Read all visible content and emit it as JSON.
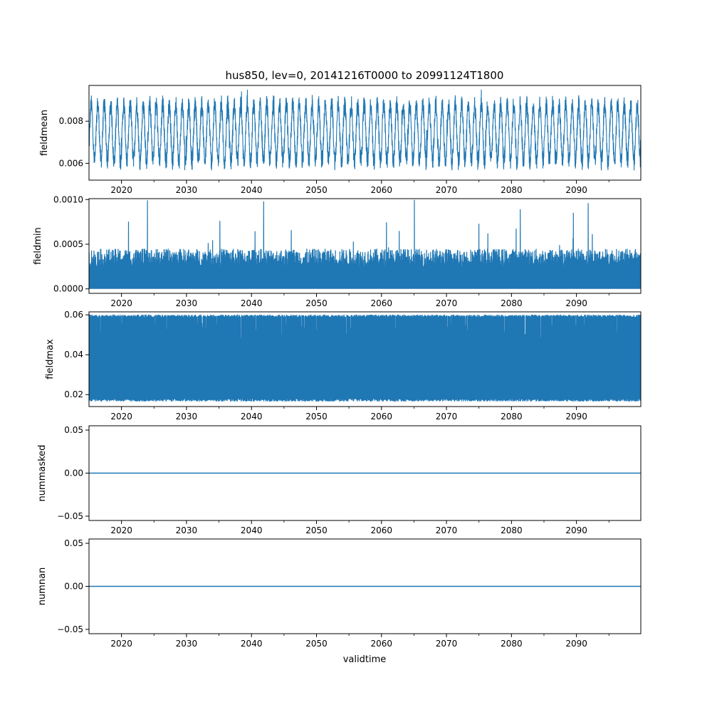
{
  "figure": {
    "title": "hus850, lev=0, 20141216T0000 to 20991124T1800",
    "xlabel": "validtime",
    "line_color": "#1f77b4"
  },
  "chart_data": [
    {
      "type": "line",
      "ylabel": "fieldmean",
      "xlim": [
        2015.0,
        2099.9
      ],
      "ylim": [
        0.0052,
        0.0097
      ],
      "x_ticks": [
        2020,
        2030,
        2040,
        2050,
        2060,
        2070,
        2080,
        2090
      ],
      "x_tick_labels": [
        "2020",
        "2030",
        "2040",
        "2050",
        "2060",
        "2070",
        "2080",
        "2090"
      ],
      "y_ticks": [
        0.006,
        0.008
      ],
      "y_tick_labels": [
        "0.006",
        "0.008"
      ],
      "series": [
        {
          "style": "seasonal-noisy",
          "min": 0.0054,
          "max": 0.0095,
          "typical_low": 0.0061,
          "typical_high": 0.0088
        }
      ]
    },
    {
      "type": "line",
      "ylabel": "fieldmin",
      "xlim": [
        2015.0,
        2099.9
      ],
      "ylim": [
        -5e-05,
        0.00101
      ],
      "x_ticks": [
        2020,
        2030,
        2040,
        2050,
        2060,
        2070,
        2080,
        2090
      ],
      "x_tick_labels": [
        "2020",
        "2030",
        "2040",
        "2050",
        "2060",
        "2070",
        "2080",
        "2090"
      ],
      "y_ticks": [
        0.0,
        0.0005,
        0.001
      ],
      "y_tick_labels": [
        "0.0000",
        "0.0005",
        "0.0010"
      ],
      "series": [
        {
          "style": "dense-from-zero",
          "min": 0.0,
          "max": 0.001,
          "typical_high": 0.00045
        }
      ]
    },
    {
      "type": "line",
      "ylabel": "fieldmax",
      "xlim": [
        2015.0,
        2099.9
      ],
      "ylim": [
        0.014,
        0.0615
      ],
      "x_ticks": [
        2020,
        2030,
        2040,
        2050,
        2060,
        2070,
        2080,
        2090
      ],
      "x_tick_labels": [
        "2020",
        "2030",
        "2040",
        "2050",
        "2060",
        "2070",
        "2080",
        "2090"
      ],
      "y_ticks": [
        0.02,
        0.04,
        0.06
      ],
      "y_tick_labels": [
        "0.02",
        "0.04",
        "0.06"
      ],
      "series": [
        {
          "style": "dense-band",
          "min": 0.0158,
          "max": 0.0601,
          "typical_low": 0.017,
          "typical_high": 0.06
        }
      ]
    },
    {
      "type": "line",
      "ylabel": "nummasked",
      "xlim": [
        2015.0,
        2099.9
      ],
      "ylim": [
        -0.055,
        0.055
      ],
      "x_ticks": [
        2020,
        2030,
        2040,
        2050,
        2060,
        2070,
        2080,
        2090
      ],
      "x_tick_labels": [
        "2020",
        "2030",
        "2040",
        "2050",
        "2060",
        "2070",
        "2080",
        "2090"
      ],
      "y_ticks": [
        -0.05,
        0.0,
        0.05
      ],
      "y_tick_labels": [
        "−0.05",
        "0.00",
        "0.05"
      ],
      "series": [
        {
          "style": "constant",
          "value": 0.0
        }
      ]
    },
    {
      "type": "line",
      "ylabel": "numnan",
      "xlim": [
        2015.0,
        2099.9
      ],
      "ylim": [
        -0.055,
        0.055
      ],
      "x_ticks": [
        2020,
        2030,
        2040,
        2050,
        2060,
        2070,
        2080,
        2090
      ],
      "x_tick_labels": [
        "2020",
        "2030",
        "2040",
        "2050",
        "2060",
        "2070",
        "2080",
        "2090"
      ],
      "y_ticks": [
        -0.05,
        0.0,
        0.05
      ],
      "y_tick_labels": [
        "−0.05",
        "0.00",
        "0.05"
      ],
      "series": [
        {
          "style": "constant",
          "value": 0.0
        }
      ]
    }
  ]
}
